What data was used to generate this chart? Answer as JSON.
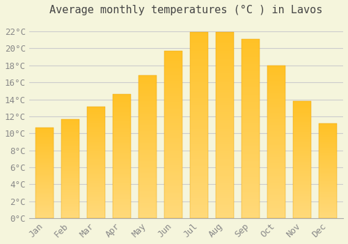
{
  "title": "Average monthly temperatures (°C ) in Lavos",
  "months": [
    "Jan",
    "Feb",
    "Mar",
    "Apr",
    "May",
    "Jun",
    "Jul",
    "Aug",
    "Sep",
    "Oct",
    "Nov",
    "Dec"
  ],
  "temperatures": [
    10.7,
    11.7,
    13.1,
    14.6,
    16.8,
    19.7,
    21.9,
    21.9,
    21.1,
    18.0,
    13.8,
    11.2
  ],
  "bar_color_top": "#FFC125",
  "bar_color_bottom": "#FFD97A",
  "bar_edge_color": "#E8A000",
  "background_color": "#F5F5DC",
  "grid_color": "#CCCCCC",
  "ylim": [
    0,
    23
  ],
  "yticks": [
    0,
    2,
    4,
    6,
    8,
    10,
    12,
    14,
    16,
    18,
    20,
    22
  ],
  "title_fontsize": 11,
  "tick_fontsize": 9,
  "title_color": "#444444",
  "tick_color": "#888888",
  "font_family": "monospace"
}
